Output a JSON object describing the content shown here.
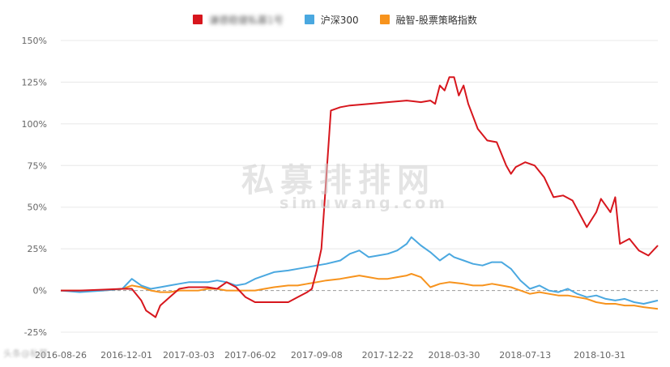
{
  "legend": [
    {
      "name": "谦德稳健私募1号",
      "color": "#d7161d",
      "blurred": true
    },
    {
      "name": "沪深300",
      "color": "#4aa8e0",
      "blurred": false
    },
    {
      "name": "融智-股票策略指数",
      "color": "#f7931d",
      "blurred": false
    }
  ],
  "watermark": {
    "cn": "私募排排网",
    "url": "simuwang.com"
  },
  "corner_logo": "头条@私募",
  "chart_data": {
    "type": "line",
    "title": "",
    "xlabel": "",
    "ylabel": "",
    "ylim": [
      -25,
      150
    ],
    "yticks": [
      -25,
      0,
      25,
      50,
      75,
      100,
      125,
      150
    ],
    "ytick_labels": [
      "-25%",
      "0%",
      "25%",
      "50%",
      "75%",
      "100%",
      "125%",
      "150%"
    ],
    "xlim": [
      "2016-08-26",
      "2019-01-25"
    ],
    "xticks": [
      "2016-08-26",
      "2016-12-01",
      "2017-03-03",
      "2017-06-02",
      "2017-09-08",
      "2017-12-22",
      "2018-03-30",
      "2018-07-13",
      "2018-10-31"
    ],
    "grid": "horizontal",
    "zero_line": "dashed",
    "series": [
      {
        "name": "谦德稳健私募1号",
        "color": "#d7161d",
        "x": [
          "2016-08-26",
          "2016-09-23",
          "2016-10-28",
          "2016-11-25",
          "2016-12-09",
          "2016-12-23",
          "2016-12-30",
          "2017-01-13",
          "2017-01-20",
          "2017-02-03",
          "2017-02-17",
          "2017-03-03",
          "2017-03-17",
          "2017-03-31",
          "2017-04-14",
          "2017-04-28",
          "2017-05-12",
          "2017-05-26",
          "2017-06-09",
          "2017-06-23",
          "2017-07-07",
          "2017-07-28",
          "2017-08-11",
          "2017-08-25",
          "2017-09-01",
          "2017-09-08",
          "2017-09-15",
          "2017-09-29",
          "2017-10-13",
          "2017-10-27",
          "2017-11-24",
          "2017-12-22",
          "2018-01-19",
          "2018-02-09",
          "2018-02-23",
          "2018-03-02",
          "2018-03-09",
          "2018-03-16",
          "2018-03-23",
          "2018-03-30",
          "2018-04-06",
          "2018-04-13",
          "2018-04-20",
          "2018-05-04",
          "2018-05-18",
          "2018-06-01",
          "2018-06-15",
          "2018-06-22",
          "2018-06-29",
          "2018-07-13",
          "2018-07-27",
          "2018-08-10",
          "2018-08-24",
          "2018-09-07",
          "2018-09-21",
          "2018-10-12",
          "2018-10-26",
          "2018-11-02",
          "2018-11-16",
          "2018-11-23",
          "2018-11-30",
          "2018-12-14",
          "2018-12-28",
          "2019-01-11",
          "2019-01-25"
        ],
        "values": [
          0,
          0,
          0.5,
          1,
          1,
          -6,
          -12,
          -16,
          -9,
          -4,
          1,
          2,
          2,
          2,
          1,
          5,
          2,
          -4,
          -7,
          -7,
          -7,
          -7,
          -4,
          -1,
          1,
          12,
          25,
          108,
          110,
          111,
          112,
          113,
          114,
          113,
          114,
          112,
          123,
          120,
          128,
          128,
          117,
          123,
          112,
          97,
          90,
          89,
          75,
          70,
          74,
          77,
          75,
          68,
          56,
          57,
          54,
          38,
          47,
          55,
          47,
          56,
          28,
          31,
          24,
          21,
          27
        ]
      },
      {
        "name": "沪深300",
        "color": "#4aa8e0",
        "x": [
          "2016-08-26",
          "2016-09-23",
          "2016-10-28",
          "2016-11-25",
          "2016-12-09",
          "2016-12-23",
          "2017-01-06",
          "2017-01-20",
          "2017-02-03",
          "2017-02-17",
          "2017-03-03",
          "2017-03-17",
          "2017-03-31",
          "2017-04-14",
          "2017-04-28",
          "2017-05-12",
          "2017-05-26",
          "2017-06-09",
          "2017-06-23",
          "2017-07-07",
          "2017-07-28",
          "2017-08-11",
          "2017-08-25",
          "2017-09-08",
          "2017-09-22",
          "2017-10-13",
          "2017-10-27",
          "2017-11-10",
          "2017-11-24",
          "2017-12-08",
          "2017-12-22",
          "2018-01-05",
          "2018-01-19",
          "2018-01-26",
          "2018-02-09",
          "2018-02-23",
          "2018-03-09",
          "2018-03-23",
          "2018-03-30",
          "2018-04-13",
          "2018-04-27",
          "2018-05-11",
          "2018-05-25",
          "2018-06-08",
          "2018-06-22",
          "2018-07-06",
          "2018-07-20",
          "2018-08-03",
          "2018-08-17",
          "2018-08-31",
          "2018-09-14",
          "2018-09-28",
          "2018-10-12",
          "2018-10-26",
          "2018-11-09",
          "2018-11-23",
          "2018-12-07",
          "2018-12-21",
          "2019-01-04",
          "2019-01-25"
        ],
        "values": [
          0,
          -1,
          0,
          1,
          7,
          3,
          1,
          2,
          3,
          4,
          5,
          5,
          5,
          6,
          5,
          3,
          4,
          7,
          9,
          11,
          12,
          13,
          14,
          15,
          16,
          18,
          22,
          24,
          20,
          21,
          22,
          24,
          28,
          32,
          27,
          23,
          18,
          22,
          20,
          18,
          16,
          15,
          17,
          17,
          13,
          6,
          1,
          3,
          0,
          -1,
          1,
          -2,
          -4,
          -3,
          -5,
          -6,
          -5,
          -7,
          -8,
          -6
        ]
      },
      {
        "name": "融智-股票策略指数",
        "color": "#f7931d",
        "x": [
          "2016-08-26",
          "2016-09-23",
          "2016-10-28",
          "2016-11-25",
          "2016-12-09",
          "2016-12-23",
          "2017-01-06",
          "2017-01-20",
          "2017-02-03",
          "2017-02-17",
          "2017-03-03",
          "2017-03-17",
          "2017-03-31",
          "2017-04-14",
          "2017-04-28",
          "2017-05-12",
          "2017-05-26",
          "2017-06-09",
          "2017-06-23",
          "2017-07-07",
          "2017-07-28",
          "2017-08-11",
          "2017-08-25",
          "2017-09-08",
          "2017-09-22",
          "2017-10-13",
          "2017-10-27",
          "2017-11-10",
          "2017-11-24",
          "2017-12-08",
          "2017-12-22",
          "2018-01-05",
          "2018-01-19",
          "2018-01-26",
          "2018-02-09",
          "2018-02-23",
          "2018-03-09",
          "2018-03-23",
          "2018-04-13",
          "2018-04-27",
          "2018-05-11",
          "2018-05-25",
          "2018-06-08",
          "2018-06-22",
          "2018-07-06",
          "2018-07-20",
          "2018-08-03",
          "2018-08-17",
          "2018-08-31",
          "2018-09-14",
          "2018-09-28",
          "2018-10-12",
          "2018-10-26",
          "2018-11-09",
          "2018-11-23",
          "2018-12-07",
          "2018-12-21",
          "2019-01-04",
          "2019-01-25"
        ],
        "values": [
          0,
          0,
          0,
          1,
          3,
          2,
          0,
          -1,
          -1,
          0,
          0,
          0,
          1,
          1,
          0,
          0,
          0,
          0,
          1,
          2,
          3,
          3,
          4,
          5,
          6,
          7,
          8,
          9,
          8,
          7,
          7,
          8,
          9,
          10,
          8,
          2,
          4,
          5,
          4,
          3,
          3,
          4,
          3,
          2,
          0,
          -2,
          -1,
          -2,
          -3,
          -3,
          -4,
          -5,
          -7,
          -8,
          -8,
          -9,
          -9,
          -10,
          -11
        ]
      }
    ]
  }
}
